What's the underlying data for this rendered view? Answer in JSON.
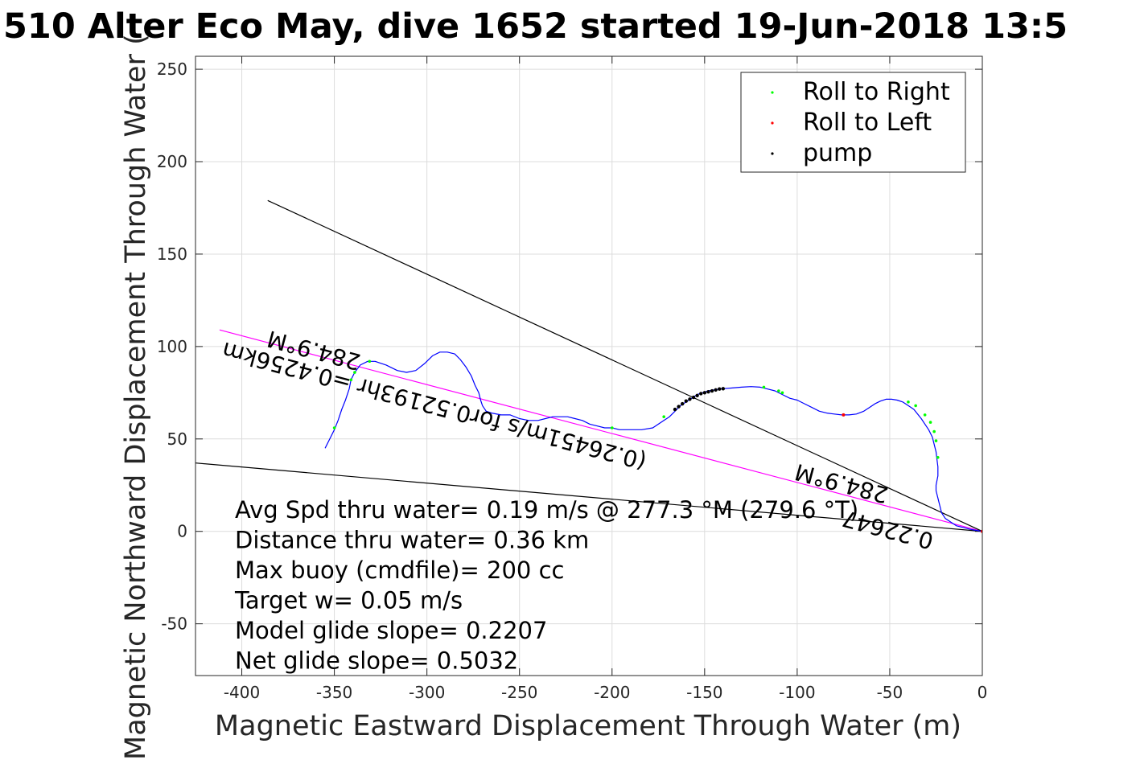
{
  "chart_data": {
    "type": "line",
    "title": "510 Alter Eco May, dive 1652 started 19-Jun-2018 13:5",
    "xlabel": "Magnetic Eastward Displacement Through Water (m)",
    "ylabel": "Magnetic Northward Displacement Through Water (",
    "xlim": [
      -425,
      0
    ],
    "ylim": [
      -78,
      257
    ],
    "xticks": [
      -400,
      -350,
      -300,
      -250,
      -200,
      -150,
      -100,
      -50,
      0
    ],
    "yticks": [
      -50,
      0,
      50,
      100,
      150,
      200,
      250
    ],
    "grid": true,
    "legend_position": "top-right",
    "legend": [
      {
        "label": "Roll to Right",
        "color": "#00ff00"
      },
      {
        "label": "Roll to Left",
        "color": "#ff0000"
      },
      {
        "label": "pump",
        "color": "#000000"
      }
    ],
    "track": {
      "color": "#0000ff",
      "x": [
        -355,
        -353,
        -350,
        -348,
        -346,
        -344,
        -342,
        -341,
        -339,
        -336,
        -332,
        -328,
        -322,
        -316,
        -311,
        -306,
        -301,
        -297,
        -293,
        -289,
        -285,
        -282,
        -279,
        -276,
        -274,
        -272,
        -271,
        -270,
        -268,
        -265,
        -260,
        -255,
        -250,
        -245,
        -240,
        -236,
        -232,
        -228,
        -224,
        -220,
        -216,
        -212,
        -208,
        -204,
        -200,
        -196,
        -190,
        -184,
        -178,
        -175,
        -172,
        -169,
        -166,
        -163,
        -160,
        -157,
        -154,
        -151,
        -148,
        -145,
        -142,
        -140,
        -135,
        -130,
        -125,
        -120,
        -116,
        -112,
        -108,
        -104,
        -100,
        -96,
        -92,
        -88,
        -84,
        -80,
        -76,
        -72,
        -68,
        -64,
        -61,
        -58,
        -55,
        -52,
        -49,
        -46,
        -43,
        -40,
        -37,
        -35,
        -33,
        -31,
        -29,
        -27,
        -26,
        -25,
        -24.5,
        -24,
        -24,
        -25,
        -25,
        -24,
        -23,
        -22,
        -20,
        -17,
        -14,
        -10,
        -6,
        -3,
        0
      ],
      "y": [
        45,
        49,
        55,
        60,
        66,
        71,
        77,
        82,
        86,
        90,
        92,
        92,
        90,
        87,
        86,
        87,
        91,
        95,
        97,
        97,
        96,
        93,
        89,
        84,
        79,
        75,
        71,
        68,
        65,
        64,
        63,
        63,
        61,
        60,
        60,
        61,
        62,
        62,
        62,
        61,
        60,
        58,
        57,
        56,
        56,
        55,
        55,
        55,
        56,
        58,
        60,
        62,
        65,
        68,
        70,
        72,
        74,
        75,
        76,
        76.5,
        77,
        77.2,
        77.6,
        78,
        78.3,
        78,
        77,
        76,
        74,
        72,
        71,
        69,
        67,
        65,
        64,
        63.5,
        63,
        63,
        63.5,
        65,
        67,
        69,
        70.5,
        71.5,
        71.5,
        71,
        70,
        68,
        66,
        63.5,
        61,
        58,
        55,
        51,
        47,
        43,
        39,
        35,
        30,
        25,
        22,
        18,
        14,
        10,
        7,
        5,
        3,
        2,
        1,
        0.5,
        0
      ]
    },
    "roll_right_x": [
      -350,
      -341,
      -339,
      -331,
      -200,
      -172,
      -118,
      -110,
      -108,
      -40,
      -36,
      -31,
      -28,
      -26,
      -25,
      -24
    ],
    "roll_right_y": [
      56,
      82,
      86,
      92,
      56,
      62,
      78,
      76,
      75,
      70,
      68,
      63,
      59,
      54,
      49,
      40
    ],
    "roll_left_x": [
      -75,
      0
    ],
    "roll_left_y": [
      63,
      0
    ],
    "pump_x": [
      -166,
      -164,
      -162,
      -160,
      -158,
      -156,
      -154,
      -152,
      -150,
      -148,
      -146,
      -144,
      -142,
      -140
    ],
    "pump_y": [
      66,
      67.5,
      69,
      70.5,
      71.5,
      72.5,
      73.5,
      74.5,
      75,
      75.5,
      76,
      76.5,
      77,
      77.2
    ],
    "ref_lines": [
      {
        "name": "course-line",
        "color": "#ff00ff",
        "x": [
          -412,
          0
        ],
        "y": [
          109,
          0
        ]
      },
      {
        "name": "bound-line-upper",
        "color": "#000000",
        "x": [
          -386,
          0
        ],
        "y": [
          179,
          0
        ]
      },
      {
        "name": "bound-line-lower",
        "color": "#000000",
        "x": [
          -425,
          0
        ],
        "y": [
          37,
          0
        ]
      }
    ],
    "annotations": [
      {
        "text": "284.9°M",
        "x": -360,
        "y": 102,
        "rotate": 194.9
      },
      {
        "text": "(0.26451m/s for0.52193hr =0.4256km",
        "x": -295,
        "y": 72,
        "rotate": 194.9
      },
      {
        "text": "284.9°M",
        "x": -75,
        "y": 30,
        "rotate": 194.9
      },
      {
        "text": "0.22647",
        "x": -50,
        "y": 5,
        "rotate": 194.9
      }
    ],
    "stats": [
      "Avg Spd thru water=  0.19 m/s @ 277.3 °M (279.6 °T)",
      "Distance thru water=  0.36 km",
      "Max buoy (cmdfile)= 200 cc",
      "Target w= 0.05 m/s",
      "Model glide slope= 0.2207",
      "Net glide slope= 0.5032"
    ]
  }
}
